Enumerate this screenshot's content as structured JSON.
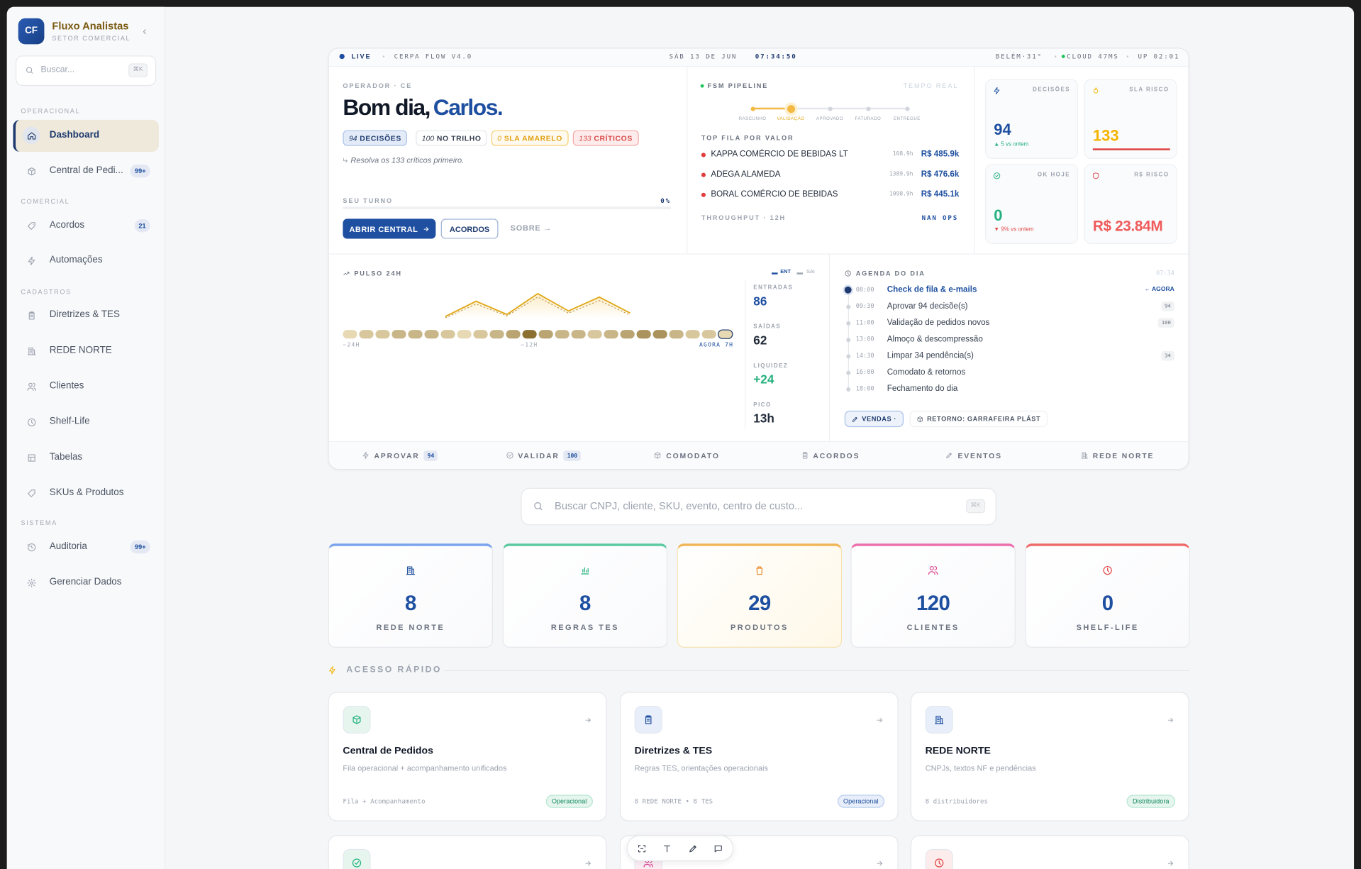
{
  "sidebar": {
    "logo": "CF",
    "name": "Fluxo Analistas",
    "subtitle": "SETOR COMERCIAL",
    "search": "Buscar...",
    "search_kbd": "⌘K",
    "sections": [
      {
        "title": "OPERACIONAL",
        "items": [
          {
            "label": "Dashboard"
          },
          {
            "label": "Central de Pedi...",
            "badge": "99+"
          }
        ]
      },
      {
        "title": "COMERCIAL",
        "items": [
          {
            "label": "Acordos",
            "badge": "21"
          },
          {
            "label": "Automações"
          }
        ]
      },
      {
        "title": "CADASTROS",
        "items": [
          {
            "label": "Diretrizes & TES"
          },
          {
            "label": "REDE NORTE"
          },
          {
            "label": "Clientes"
          },
          {
            "label": "Shelf-Life"
          },
          {
            "label": "Tabelas"
          },
          {
            "label": "SKUs & Produtos"
          }
        ]
      },
      {
        "title": "SISTEMA",
        "items": [
          {
            "label": "Auditoria",
            "badge": "99+"
          },
          {
            "label": "Gerenciar Dados"
          }
        ]
      }
    ]
  },
  "status": {
    "live": "LIVE",
    "version": "CERPA FLOW V4.0",
    "date": "SÁB 13 DE JUN",
    "time": "07:34:50",
    "weather": "BELÉM·31°",
    "cloud": "CLOUD 47MS",
    "uptime": "UP 02:01"
  },
  "greeting": {
    "role": "OPERADOR · CE",
    "hello": "Bom dia,",
    "name": "Carlos.",
    "chips": [
      {
        "value": "94",
        "label": "DECISÕES"
      },
      {
        "value": "100",
        "label": "NO TRILHO"
      },
      {
        "value": "0",
        "label": "SLA AMARELO"
      },
      {
        "value": "133",
        "label": "CRÍTICOS"
      }
    ],
    "hint": "Resolva os 133 críticos primeiro.",
    "shift_label": "SEU TURNO",
    "shift_value": "0%",
    "buttons": [
      "ABRIR CENTRAL",
      "ACORDOS",
      "SOBRE →"
    ]
  },
  "pipeline": {
    "title": "FSM PIPELINE",
    "mode": "TEMPO REAL",
    "steps": [
      "RASCUNHO",
      "VALIDAÇÃO",
      "APROVADO",
      "FATURADO",
      "ENTREGUE"
    ],
    "queue_title": "TOP FILA POR VALOR",
    "queue": [
      {
        "name": "KAPPA COMÉRCIO DE BEBIDAS LT",
        "age": "108.9h",
        "value": "R$ 485.9k"
      },
      {
        "name": "ADEGA ALAMEDA",
        "age": "1389.9h",
        "value": "R$ 476.6k"
      },
      {
        "name": "BORAL COMÉRCIO DE BEBIDAS",
        "age": "1098.9h",
        "value": "R$ 445.1k"
      }
    ],
    "throughput": "THROUGHPUT · 12H",
    "ops": "NAN OPS"
  },
  "kpis": [
    {
      "label": "DECISÕES",
      "value": "94",
      "delta": "▲ 5 vs ontem"
    },
    {
      "label": "SLA RISCO",
      "value": "133"
    },
    {
      "label": "OK HOJE",
      "value": "0",
      "delta": "▼ 9% vs ontem"
    },
    {
      "label": "R$ RISCO",
      "value": "R$ 23.84M"
    }
  ],
  "pulse": {
    "title": "PULSO 24H",
    "legend": [
      "ENT",
      "SAI"
    ],
    "axis": [
      "−24H",
      "−12H",
      "AGORA 7H"
    ],
    "heat": [
      1,
      2,
      2,
      3,
      3,
      3,
      2,
      1,
      2,
      3,
      4,
      7,
      4,
      3,
      3,
      2,
      3,
      4,
      5,
      5,
      3,
      2,
      2,
      1
    ],
    "ent": [
      3,
      25,
      6,
      36,
      11,
      31,
      8
    ],
    "sai": [
      1,
      21,
      4,
      31,
      8,
      26,
      5
    ],
    "stats": [
      {
        "label": "ENTRADAS",
        "value": "86"
      },
      {
        "label": "SAÍDAS",
        "value": "62"
      },
      {
        "label": "LIQUIDEZ",
        "value": "+24"
      },
      {
        "label": "PICO",
        "value": "13h"
      }
    ]
  },
  "agenda": {
    "title": "AGENDA DO DIA",
    "now": "07:34",
    "current": "← AGORA",
    "items": [
      {
        "time": "08:00",
        "label": "Check de fila & e-mails"
      },
      {
        "time": "09:30",
        "label": "Aprovar 94 decisõe(s)",
        "badge": "94"
      },
      {
        "time": "11:00",
        "label": "Validação de pedidos novos",
        "badge": "100"
      },
      {
        "time": "13:00",
        "label": "Almoço & descompressão"
      },
      {
        "time": "14:30",
        "label": "Limpar 34 pendência(s)",
        "badge": "34"
      },
      {
        "time": "16:00",
        "label": "Comodato & retornos"
      },
      {
        "time": "18:00",
        "label": "Fechamento do dia"
      }
    ],
    "tags": [
      "VENDAS ·",
      "RETORNO: GARRAFEIRA PLÁST"
    ]
  },
  "actions": [
    {
      "label": "APROVAR",
      "badge": "94"
    },
    {
      "label": "VALIDAR",
      "badge": "100"
    },
    {
      "label": "COMODATO"
    },
    {
      "label": "ACORDOS"
    },
    {
      "label": "EVENTOS"
    },
    {
      "label": "REDE NORTE"
    }
  ],
  "search": {
    "placeholder": "Buscar CNPJ, cliente, SKU, evento, centro de custo...",
    "kbd": "⌘K"
  },
  "stats": [
    {
      "value": "8",
      "label": "REDE NORTE"
    },
    {
      "value": "8",
      "label": "REGRAS TES"
    },
    {
      "value": "29",
      "label": "PRODUTOS"
    },
    {
      "value": "120",
      "label": "CLIENTES"
    },
    {
      "value": "0",
      "label": "SHELF-LIFE"
    }
  ],
  "quick_access": {
    "title": "ACESSO RÁPIDO",
    "cards": [
      {
        "title": "Central de Pedidos",
        "description": "Fila operacional + acompanhamento unificados",
        "meta": "Fila + Acompanhamento",
        "tag": "Operacional"
      },
      {
        "title": "Diretrizes & TES",
        "description": "Regras TES, orientações operacionais",
        "meta": "8 REDE NORTE • 8 TES",
        "tag": "Operacional"
      },
      {
        "title": "REDE NORTE",
        "description": "CNPJs, textos NF e pendências",
        "meta": "8 distribuidores",
        "tag": "Distribuidora"
      }
    ]
  }
}
